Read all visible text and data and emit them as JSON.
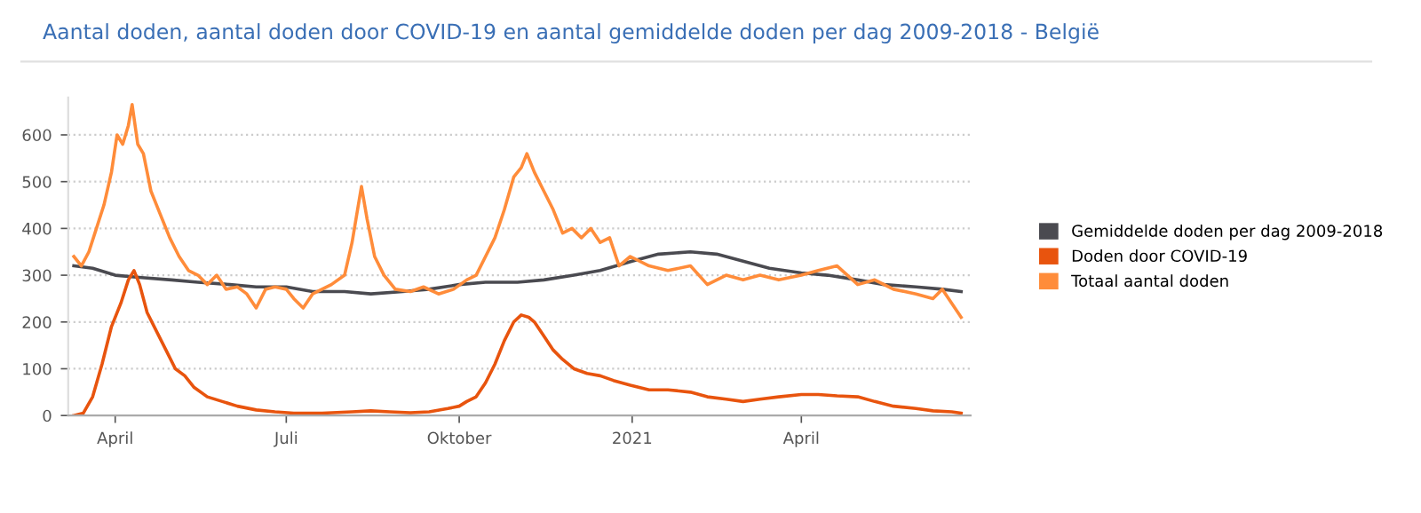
{
  "chart_data": {
    "type": "line",
    "title": "Aantal doden, aantal doden door COVID-19 en aantal gemiddelde doden per dag 2009-2018 - België",
    "xlim": [
      "2020-03-07",
      "2021-06-30"
    ],
    "ylim": [
      0,
      680
    ],
    "yticks": [
      0,
      100,
      200,
      300,
      400,
      500,
      600
    ],
    "xticks": [
      {
        "value": "2020-04-01",
        "label": "April"
      },
      {
        "value": "2020-07-01",
        "label": "Juli"
      },
      {
        "value": "2020-10-01",
        "label": "Oktober"
      },
      {
        "value": "2021-01-01",
        "label": "2021"
      },
      {
        "value": "2021-04-01",
        "label": "April"
      }
    ],
    "grid": "y",
    "legend": "right",
    "line_style": "solid",
    "marker": "none",
    "series": [
      {
        "name": "Gemiddelde doden per dag 2009-2018",
        "color": "#4a4a50",
        "x": [
          "2020-03-10",
          "2020-03-20",
          "2020-04-01",
          "2020-04-15",
          "2020-05-01",
          "2020-05-15",
          "2020-06-01",
          "2020-06-15",
          "2020-07-01",
          "2020-07-15",
          "2020-08-01",
          "2020-08-15",
          "2020-09-01",
          "2020-09-15",
          "2020-10-01",
          "2020-10-15",
          "2020-11-01",
          "2020-11-15",
          "2020-12-01",
          "2020-12-15",
          "2021-01-01",
          "2021-01-15",
          "2021-02-01",
          "2021-02-15",
          "2021-03-01",
          "2021-03-15",
          "2021-04-01",
          "2021-04-15",
          "2021-05-01",
          "2021-05-15",
          "2021-06-01",
          "2021-06-15",
          "2021-06-25"
        ],
        "values": [
          320,
          315,
          300,
          295,
          290,
          285,
          280,
          275,
          275,
          265,
          265,
          260,
          265,
          270,
          280,
          285,
          285,
          290,
          300,
          310,
          330,
          345,
          350,
          345,
          330,
          315,
          305,
          300,
          290,
          280,
          275,
          270,
          265
        ]
      },
      {
        "name": "Doden door COVID-19",
        "color": "#e8540e",
        "x": [
          "2020-03-10",
          "2020-03-15",
          "2020-03-20",
          "2020-03-25",
          "2020-03-30",
          "2020-04-04",
          "2020-04-08",
          "2020-04-11",
          "2020-04-14",
          "2020-04-18",
          "2020-04-23",
          "2020-04-28",
          "2020-05-03",
          "2020-05-08",
          "2020-05-13",
          "2020-05-20",
          "2020-05-28",
          "2020-06-05",
          "2020-06-15",
          "2020-06-25",
          "2020-07-05",
          "2020-07-20",
          "2020-08-05",
          "2020-08-15",
          "2020-08-25",
          "2020-09-05",
          "2020-09-15",
          "2020-09-25",
          "2020-10-01",
          "2020-10-05",
          "2020-10-10",
          "2020-10-15",
          "2020-10-20",
          "2020-10-25",
          "2020-10-30",
          "2020-11-03",
          "2020-11-07",
          "2020-11-10",
          "2020-11-15",
          "2020-11-20",
          "2020-11-25",
          "2020-12-01",
          "2020-12-08",
          "2020-12-15",
          "2020-12-22",
          "2020-12-31",
          "2021-01-10",
          "2021-01-20",
          "2021-02-01",
          "2021-02-10",
          "2021-02-20",
          "2021-03-01",
          "2021-03-10",
          "2021-03-20",
          "2021-04-01",
          "2021-04-10",
          "2021-04-20",
          "2021-05-01",
          "2021-05-10",
          "2021-05-20",
          "2021-06-01",
          "2021-06-10",
          "2021-06-20",
          "2021-06-25"
        ],
        "values": [
          0,
          5,
          40,
          110,
          190,
          240,
          290,
          310,
          280,
          220,
          180,
          140,
          100,
          85,
          60,
          40,
          30,
          20,
          12,
          8,
          5,
          5,
          8,
          10,
          8,
          6,
          8,
          15,
          20,
          30,
          40,
          70,
          110,
          160,
          200,
          215,
          210,
          200,
          170,
          140,
          120,
          100,
          90,
          85,
          75,
          65,
          55,
          55,
          50,
          40,
          35,
          30,
          35,
          40,
          45,
          45,
          42,
          40,
          30,
          20,
          15,
          10,
          8,
          5
        ]
      },
      {
        "name": "Totaal aantal doden",
        "color": "#ff8c3a",
        "x": [
          "2020-03-10",
          "2020-03-14",
          "2020-03-18",
          "2020-03-22",
          "2020-03-26",
          "2020-03-30",
          "2020-04-02",
          "2020-04-05",
          "2020-04-08",
          "2020-04-10",
          "2020-04-13",
          "2020-04-16",
          "2020-04-20",
          "2020-04-25",
          "2020-04-30",
          "2020-05-05",
          "2020-05-10",
          "2020-05-15",
          "2020-05-20",
          "2020-05-25",
          "2020-05-30",
          "2020-06-05",
          "2020-06-10",
          "2020-06-15",
          "2020-06-20",
          "2020-06-25",
          "2020-07-01",
          "2020-07-05",
          "2020-07-10",
          "2020-07-15",
          "2020-07-20",
          "2020-07-25",
          "2020-08-01",
          "2020-08-05",
          "2020-08-10",
          "2020-08-13",
          "2020-08-17",
          "2020-08-22",
          "2020-08-28",
          "2020-09-05",
          "2020-09-12",
          "2020-09-20",
          "2020-09-28",
          "2020-10-05",
          "2020-10-10",
          "2020-10-15",
          "2020-10-20",
          "2020-10-25",
          "2020-10-30",
          "2020-11-03",
          "2020-11-06",
          "2020-11-10",
          "2020-11-15",
          "2020-11-20",
          "2020-11-25",
          "2020-11-30",
          "2020-12-05",
          "2020-12-10",
          "2020-12-15",
          "2020-12-20",
          "2020-12-25",
          "2020-12-31",
          "2021-01-10",
          "2021-01-20",
          "2021-02-01",
          "2021-02-10",
          "2021-02-20",
          "2021-03-01",
          "2021-03-10",
          "2021-03-20",
          "2021-04-01",
          "2021-04-10",
          "2021-04-20",
          "2021-05-01",
          "2021-05-10",
          "2021-05-20",
          "2021-06-01",
          "2021-06-10",
          "2021-06-15",
          "2021-06-20",
          "2021-06-25"
        ],
        "values": [
          340,
          320,
          350,
          400,
          450,
          520,
          600,
          580,
          620,
          665,
          580,
          560,
          480,
          430,
          380,
          340,
          310,
          300,
          280,
          300,
          270,
          275,
          260,
          230,
          270,
          275,
          270,
          250,
          230,
          260,
          270,
          280,
          300,
          370,
          490,
          420,
          340,
          300,
          270,
          265,
          275,
          260,
          270,
          290,
          300,
          340,
          380,
          440,
          510,
          530,
          560,
          520,
          480,
          440,
          390,
          400,
          380,
          400,
          370,
          380,
          320,
          340,
          320,
          310,
          320,
          280,
          300,
          290,
          300,
          290,
          300,
          310,
          320,
          280,
          290,
          270,
          260,
          250,
          270,
          240,
          210
        ]
      }
    ]
  }
}
